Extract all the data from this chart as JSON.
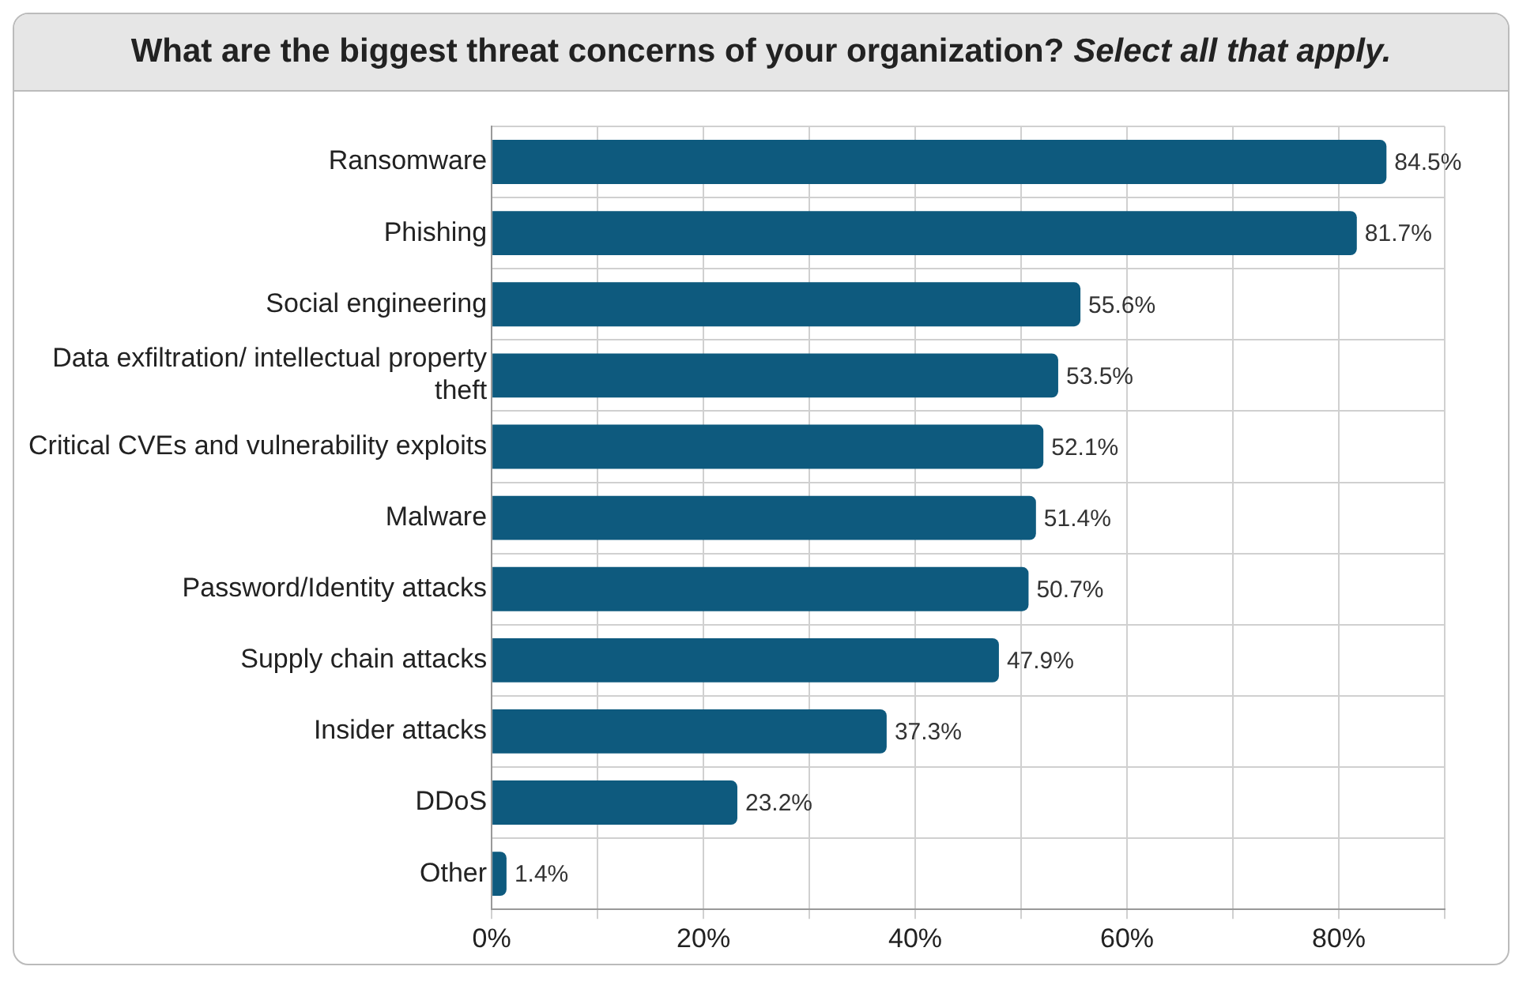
{
  "chart_data": {
    "type": "bar",
    "orientation": "horizontal",
    "title": "What are the biggest threat concerns of your organization?",
    "subtitle": "Select all that apply.",
    "categories": [
      "Ransomware",
      "Phishing",
      "Social engineering",
      "Data exfiltration/ intellectual property theft",
      "Critical CVEs and vulnerability exploits",
      "Malware",
      "Password/Identity attacks",
      "Supply chain attacks",
      "Insider attacks",
      "DDoS",
      "Other"
    ],
    "values": [
      84.5,
      81.7,
      55.6,
      53.5,
      52.1,
      51.4,
      50.7,
      47.9,
      37.3,
      23.2,
      1.4
    ],
    "value_labels": [
      "84.5%",
      "81.7%",
      "55.6%",
      "53.5%",
      "52.1%",
      "51.4%",
      "50.7%",
      "47.9%",
      "37.3%",
      "23.2%",
      "1.4%"
    ],
    "color": "#0e5a7e",
    "xlim": [
      0,
      90
    ],
    "xticks": [
      {
        "value": 0,
        "label": "0%"
      },
      {
        "value": 10,
        "label": null
      },
      {
        "value": 20,
        "label": "20%"
      },
      {
        "value": 30,
        "label": null
      },
      {
        "value": 40,
        "label": "40%"
      },
      {
        "value": 50,
        "label": null
      },
      {
        "value": 60,
        "label": "60%"
      },
      {
        "value": 70,
        "label": null
      },
      {
        "value": 80,
        "label": "80%"
      },
      {
        "value": 90,
        "label": null
      }
    ],
    "grid": true,
    "legend": false
  }
}
